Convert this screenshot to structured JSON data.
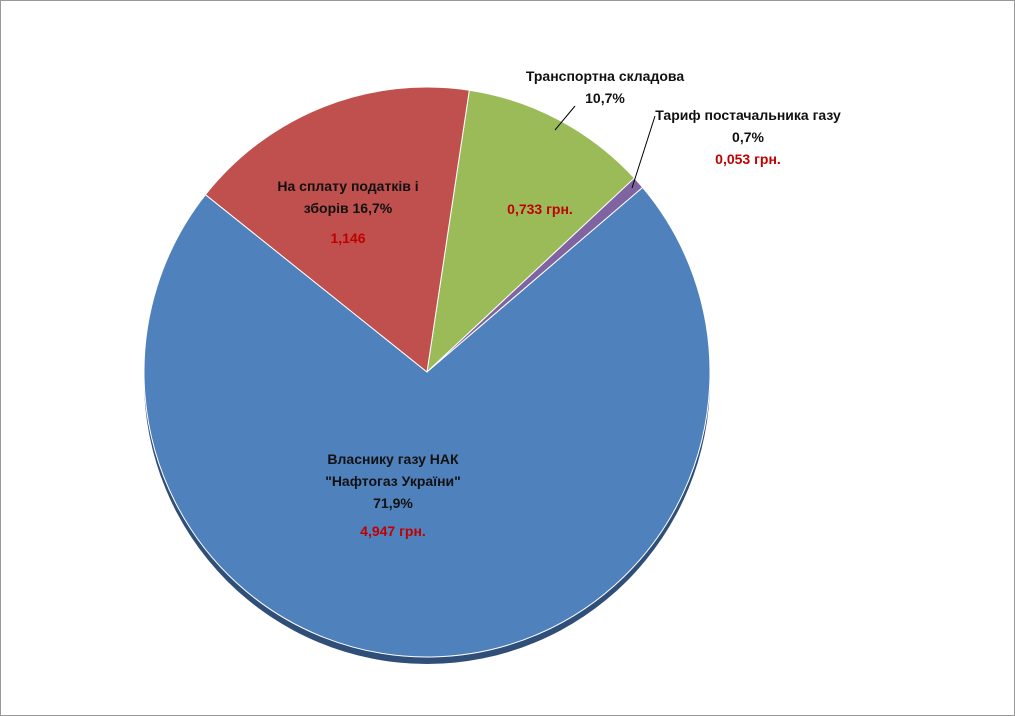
{
  "chart_data": {
    "type": "pie",
    "categories": [
      "Транспортна складова",
      "Тариф постачальника газу",
      "Власнику газу НАК \"Нафтогаз України\"",
      "На сплату податків і зборів"
    ],
    "values": [
      10.7,
      0.7,
      71.9,
      16.7
    ],
    "value_labels": [
      "10,7%",
      "0,7%",
      "71,9%",
      "16,7%"
    ],
    "amounts": [
      0.733,
      0.053,
      4.947,
      1.146
    ],
    "amount_labels": [
      "0,733 грн.",
      "0,053 грн.",
      "4,947 грн.",
      "1,146"
    ],
    "colors": [
      "#9bbb59",
      "#8064a2",
      "#4f81bd",
      "#c0504d"
    ]
  }
}
